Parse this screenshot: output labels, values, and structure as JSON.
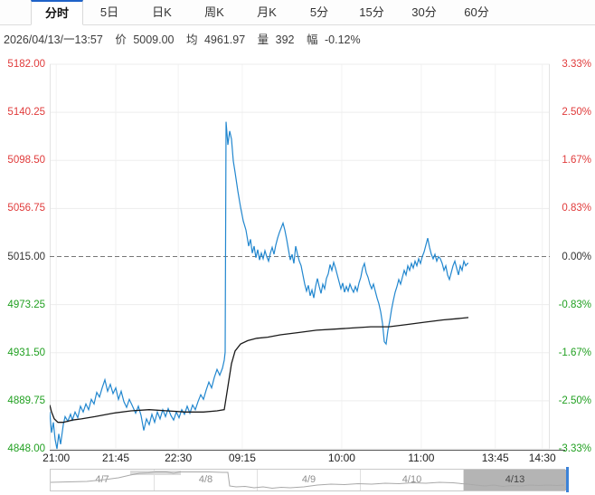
{
  "colors": {
    "up_red": "#e03b3b",
    "down_green": "#21a021",
    "price_blue": "#2287cf",
    "avg_black": "#1a1a1a",
    "ref_black": "#333333",
    "grid": "#ededed",
    "vgrid": "#f2f2f2",
    "zero_dash": "#777777"
  },
  "tabs": [
    {
      "label": "分时",
      "active": true
    },
    {
      "label": "5日",
      "active": false
    },
    {
      "label": "日K",
      "active": false
    },
    {
      "label": "周K",
      "active": false
    },
    {
      "label": "月K",
      "active": false
    },
    {
      "label": "5分",
      "active": false
    },
    {
      "label": "15分",
      "active": false
    },
    {
      "label": "30分",
      "active": false
    },
    {
      "label": "60分",
      "active": false
    }
  ],
  "quote_bar": {
    "datetime": "2026/04/13/一13:57",
    "price_label": "价",
    "price": "5009.00",
    "avg_label": "均",
    "avg": "4961.97",
    "vol_label": "量",
    "volume": "392",
    "chg_label": "幅",
    "change": "-0.12%"
  },
  "chart_data": {
    "type": "line",
    "title": "",
    "ylim": [
      4848.0,
      5182.0
    ],
    "prev_close": 5015.0,
    "grid": true,
    "y_axis_left": [
      {
        "label": "5182.00",
        "color": "#e03b3b"
      },
      {
        "label": "5140.25",
        "color": "#e03b3b"
      },
      {
        "label": "5098.50",
        "color": "#e03b3b"
      },
      {
        "label": "5056.75",
        "color": "#e03b3b"
      },
      {
        "label": "5015.00",
        "color": "#333333"
      },
      {
        "label": "4973.25",
        "color": "#21a021"
      },
      {
        "label": "4931.50",
        "color": "#21a021"
      },
      {
        "label": "4889.75",
        "color": "#21a021"
      },
      {
        "label": "4848.00",
        "color": "#21a021"
      }
    ],
    "y_axis_right": [
      {
        "label": "3.33%",
        "color": "#e03b3b"
      },
      {
        "label": "2.50%",
        "color": "#e03b3b"
      },
      {
        "label": "1.67%",
        "color": "#e03b3b"
      },
      {
        "label": "0.83%",
        "color": "#e03b3b"
      },
      {
        "label": "0.00%",
        "color": "#333333"
      },
      {
        "label": "-0.83%",
        "color": "#21a021"
      },
      {
        "label": "-1.67%",
        "color": "#21a021"
      },
      {
        "label": "-2.50%",
        "color": "#21a021"
      },
      {
        "label": "-3.33%",
        "color": "#21a021"
      }
    ],
    "x_ticks": [
      {
        "label": "21:00",
        "f": 0.013
      },
      {
        "label": "21:45",
        "f": 0.132
      },
      {
        "label": "22:30",
        "f": 0.257
      },
      {
        "label": "09:15",
        "f": 0.385
      },
      {
        "label": "10:00",
        "f": 0.584
      },
      {
        "label": "11:00",
        "f": 0.743
      },
      {
        "label": "13:45",
        "f": 0.891
      },
      {
        "label": "14:30",
        "f": 0.985
      }
    ],
    "series": [
      {
        "name": "price",
        "color": "#2287cf",
        "width": 1.2,
        "points": [
          [
            0,
            4880
          ],
          [
            2,
            4862
          ],
          [
            4,
            4871
          ],
          [
            6,
            4856
          ],
          [
            8,
            4848
          ],
          [
            10,
            4861
          ],
          [
            12,
            4852
          ],
          [
            15,
            4869
          ],
          [
            17,
            4876
          ],
          [
            20,
            4872
          ],
          [
            23,
            4878
          ],
          [
            25,
            4873
          ],
          [
            28,
            4880
          ],
          [
            31,
            4875
          ],
          [
            34,
            4885
          ],
          [
            37,
            4880
          ],
          [
            40,
            4887
          ],
          [
            43,
            4882
          ],
          [
            46,
            4891
          ],
          [
            49,
            4887
          ],
          [
            52,
            4897
          ],
          [
            55,
            4893
          ],
          [
            58,
            4901
          ],
          [
            61,
            4908
          ],
          [
            64,
            4898
          ],
          [
            67,
            4904
          ],
          [
            70,
            4896
          ],
          [
            73,
            4901
          ],
          [
            76,
            4891
          ],
          [
            79,
            4898
          ],
          [
            82,
            4889
          ],
          [
            85,
            4884
          ],
          [
            88,
            4891
          ],
          [
            91,
            4886
          ],
          [
            95,
            4879
          ],
          [
            98,
            4885
          ],
          [
            101,
            4877
          ],
          [
            104,
            4864
          ],
          [
            107,
            4874
          ],
          [
            110,
            4869
          ],
          [
            113,
            4878
          ],
          [
            116,
            4871
          ],
          [
            119,
            4880
          ],
          [
            122,
            4874
          ],
          [
            125,
            4882
          ],
          [
            128,
            4876
          ],
          [
            131,
            4883
          ],
          [
            134,
            4877
          ],
          [
            137,
            4873
          ],
          [
            140,
            4880
          ],
          [
            143,
            4875
          ],
          [
            146,
            4882
          ],
          [
            149,
            4878
          ],
          [
            152,
            4885
          ],
          [
            155,
            4879
          ],
          [
            158,
            4886
          ],
          [
            161,
            4882
          ],
          [
            164,
            4889
          ],
          [
            167,
            4895
          ],
          [
            170,
            4891
          ],
          [
            173,
            4899
          ],
          [
            176,
            4906
          ],
          [
            179,
            4901
          ],
          [
            182,
            4910
          ],
          [
            185,
            4917
          ],
          [
            188,
            4912
          ],
          [
            191,
            4918
          ],
          [
            193,
            4925
          ],
          [
            194,
            4932
          ],
          [
            195,
            5132
          ],
          [
            197,
            5112
          ],
          [
            199,
            5124
          ],
          [
            201,
            5117
          ],
          [
            203,
            5098
          ],
          [
            205,
            5088
          ],
          [
            208,
            5072
          ],
          [
            211,
            5058
          ],
          [
            214,
            5046
          ],
          [
            217,
            5038
          ],
          [
            220,
            5024
          ],
          [
            222,
            5030
          ],
          [
            224,
            5018
          ],
          [
            226,
            5024
          ],
          [
            228,
            5014
          ],
          [
            230,
            5021
          ],
          [
            232,
            5012
          ],
          [
            234,
            5018
          ],
          [
            236,
            5013
          ],
          [
            238,
            5020
          ],
          [
            240,
            5015
          ],
          [
            242,
            5011
          ],
          [
            244,
            5018
          ],
          [
            246,
            5023
          ],
          [
            248,
            5017
          ],
          [
            250,
            5025
          ],
          [
            252,
            5031
          ],
          [
            254,
            5036
          ],
          [
            256,
            5040
          ],
          [
            258,
            5044
          ],
          [
            260,
            5038
          ],
          [
            262,
            5030
          ],
          [
            264,
            5021
          ],
          [
            266,
            5012
          ],
          [
            268,
            5017
          ],
          [
            270,
            5009
          ],
          [
            272,
            5024
          ],
          [
            274,
            5017
          ],
          [
            276,
            5011
          ],
          [
            278,
            5007
          ],
          [
            280,
            4999
          ],
          [
            282,
            4991
          ],
          [
            284,
            4985
          ],
          [
            286,
            4990
          ],
          [
            288,
            4981
          ],
          [
            290,
            4986
          ],
          [
            292,
            4979
          ],
          [
            294,
            4989
          ],
          [
            296,
            4996
          ],
          [
            298,
            4989
          ],
          [
            300,
            4983
          ],
          [
            302,
            4991
          ],
          [
            304,
            4987
          ],
          [
            306,
            4996
          ],
          [
            308,
            5000
          ],
          [
            310,
            5008
          ],
          [
            312,
            5003
          ],
          [
            314,
            5010
          ],
          [
            316,
            5005
          ],
          [
            318,
            4999
          ],
          [
            320,
            4993
          ],
          [
            322,
            4987
          ],
          [
            324,
            4992
          ],
          [
            326,
            4984
          ],
          [
            328,
            4989
          ],
          [
            330,
            4985
          ],
          [
            332,
            4991
          ],
          [
            334,
            4987
          ],
          [
            336,
            4984
          ],
          [
            338,
            4989
          ],
          [
            340,
            4985
          ],
          [
            342,
            4992
          ],
          [
            344,
            4997
          ],
          [
            346,
            5005
          ],
          [
            348,
            5009
          ],
          [
            350,
            5001
          ],
          [
            352,
            4997
          ],
          [
            354,
            4991
          ],
          [
            356,
            4987
          ],
          [
            358,
            4991
          ],
          [
            360,
            4985
          ],
          [
            362,
            4979
          ],
          [
            364,
            4974
          ],
          [
            366,
            4967
          ],
          [
            368,
            4957
          ],
          [
            370,
            4941
          ],
          [
            372,
            4939
          ],
          [
            374,
            4951
          ],
          [
            376,
            4959
          ],
          [
            378,
            4969
          ],
          [
            380,
            4977
          ],
          [
            382,
            4984
          ],
          [
            384,
            4989
          ],
          [
            386,
            4995
          ],
          [
            388,
            4991
          ],
          [
            390,
            4997
          ],
          [
            392,
            5003
          ],
          [
            394,
            4999
          ],
          [
            396,
            5007
          ],
          [
            398,
            5003
          ],
          [
            400,
            5009
          ],
          [
            402,
            5005
          ],
          [
            404,
            5011
          ],
          [
            406,
            5007
          ],
          [
            408,
            5013
          ],
          [
            410,
            5009
          ],
          [
            412,
            5015
          ],
          [
            414,
            5019
          ],
          [
            416,
            5025
          ],
          [
            418,
            5031
          ],
          [
            420,
            5023
          ],
          [
            422,
            5017
          ],
          [
            424,
            5013
          ],
          [
            426,
            5017
          ],
          [
            428,
            5011
          ],
          [
            430,
            5015
          ],
          [
            432,
            5013
          ],
          [
            434,
            5009
          ],
          [
            436,
            5003
          ],
          [
            438,
            5007
          ],
          [
            440,
            4999
          ],
          [
            442,
            4995
          ],
          [
            444,
            5001
          ],
          [
            446,
            5007
          ],
          [
            448,
            5011
          ],
          [
            450,
            5005
          ],
          [
            452,
            4999
          ],
          [
            454,
            5007
          ],
          [
            456,
            5003
          ],
          [
            458,
            5011
          ],
          [
            460,
            5007
          ],
          [
            462,
            5009
          ],
          [
            463,
            5009
          ]
        ]
      },
      {
        "name": "average",
        "color": "#1a1a1a",
        "width": 1.3,
        "points": [
          [
            0,
            4886
          ],
          [
            2,
            4880
          ],
          [
            5,
            4874
          ],
          [
            9,
            4871
          ],
          [
            15,
            4871
          ],
          [
            25,
            4873
          ],
          [
            35,
            4874
          ],
          [
            50,
            4876
          ],
          [
            70,
            4879
          ],
          [
            90,
            4881
          ],
          [
            110,
            4882
          ],
          [
            130,
            4881
          ],
          [
            150,
            4880
          ],
          [
            170,
            4880
          ],
          [
            185,
            4881
          ],
          [
            193,
            4882
          ],
          [
            197,
            4902
          ],
          [
            201,
            4922
          ],
          [
            205,
            4933
          ],
          [
            211,
            4939
          ],
          [
            219,
            4942
          ],
          [
            229,
            4944
          ],
          [
            241,
            4945
          ],
          [
            255,
            4947
          ],
          [
            275,
            4949
          ],
          [
            295,
            4951
          ],
          [
            315,
            4952
          ],
          [
            335,
            4953
          ],
          [
            355,
            4954
          ],
          [
            375,
            4954
          ],
          [
            395,
            4956
          ],
          [
            415,
            4958
          ],
          [
            435,
            4960
          ],
          [
            450,
            4961
          ],
          [
            463,
            4962
          ]
        ]
      }
    ]
  },
  "navigator": {
    "sections": [
      {
        "label": "4/7",
        "selected": false
      },
      {
        "label": "4/8",
        "selected": false
      },
      {
        "label": "4/9",
        "selected": false
      },
      {
        "label": "4/10",
        "selected": false
      },
      {
        "label": "4/13",
        "selected": true
      }
    ],
    "spark_points": [
      [
        0,
        14
      ],
      [
        20,
        13.5
      ],
      [
        40,
        13
      ],
      [
        60,
        11
      ],
      [
        75,
        9
      ],
      [
        88,
        6
      ],
      [
        98,
        4
      ],
      [
        108,
        3.5
      ],
      [
        116,
        2.5
      ],
      [
        128,
        2.5
      ],
      [
        136,
        4
      ],
      [
        143,
        2.5
      ],
      [
        160,
        2.5
      ],
      [
        175,
        2.5
      ],
      [
        190,
        3
      ],
      [
        196,
        3
      ],
      [
        198,
        18
      ],
      [
        205,
        19
      ],
      [
        215,
        18.5
      ],
      [
        225,
        20
      ],
      [
        235,
        19
      ],
      [
        245,
        20.5
      ],
      [
        255,
        19.5
      ],
      [
        265,
        20
      ],
      [
        280,
        19
      ],
      [
        295,
        17
      ],
      [
        310,
        16
      ],
      [
        325,
        16.5
      ],
      [
        340,
        15.5
      ],
      [
        355,
        16
      ],
      [
        370,
        15
      ],
      [
        385,
        15.5
      ],
      [
        400,
        14.5
      ],
      [
        415,
        15
      ],
      [
        430,
        14
      ],
      [
        445,
        14.5
      ],
      [
        455,
        15.5
      ],
      [
        462,
        16
      ],
      [
        470,
        17
      ],
      [
        480,
        18
      ],
      [
        490,
        17
      ],
      [
        500,
        18.5
      ],
      [
        510,
        17.5
      ],
      [
        520,
        18
      ],
      [
        530,
        17
      ],
      [
        540,
        17.5
      ],
      [
        550,
        17
      ],
      [
        560,
        17.5
      ],
      [
        568,
        17
      ]
    ]
  }
}
